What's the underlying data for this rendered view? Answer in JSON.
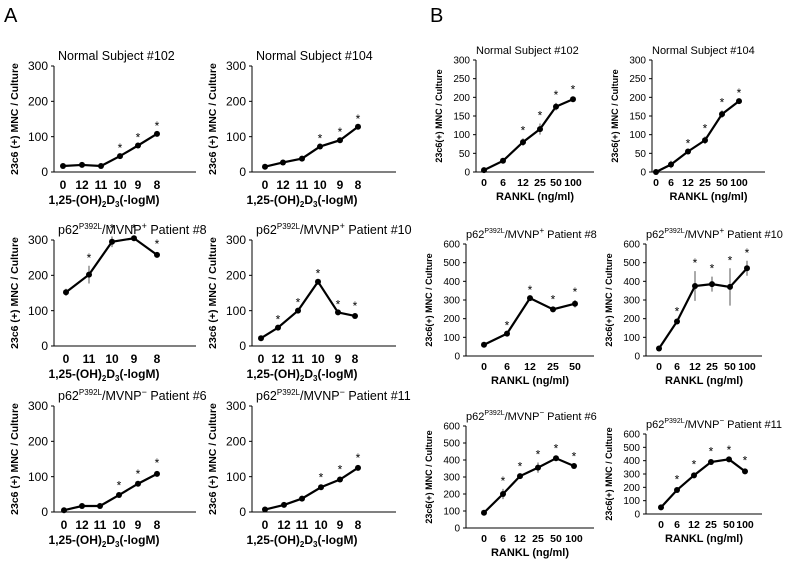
{
  "panel_labels": {
    "a": "A",
    "b": "B"
  },
  "axis_labels": {
    "vitd_x": "1,25-(OH)",
    "vitd_sub": "2",
    "vitd_mid": "D",
    "vitd_sub2": "3",
    "vitd_end": "(-logM)",
    "rankl_x": "RANKL (ng/ml)",
    "y_A": "23c6 (+) MNC / Culture",
    "y_B": "23c6(+) MNC / Culture"
  },
  "title_parts": {
    "p62": "p62",
    "sup": "P392L",
    "mvnp": "/MVNP",
    "plus": "+",
    "minus": "−"
  },
  "chart_data": [
    {
      "type": "line",
      "id": "A1",
      "title": "Normal  Subject #102",
      "categories": [
        "0",
        "12",
        "11",
        "10",
        "9",
        "8"
      ],
      "values": [
        17,
        20,
        17,
        45,
        75,
        108
      ],
      "errors": [
        0,
        0,
        0,
        0,
        0,
        0
      ],
      "significant": [
        false,
        false,
        false,
        true,
        true,
        true
      ],
      "ylim": [
        0,
        300
      ],
      "yticks": [
        "0",
        "100",
        "200",
        "300"
      ],
      "xlabel": "1,25-(OH)2D3(-logM)",
      "ylabel": "23c6 (+) MNC / Culture"
    },
    {
      "type": "line",
      "id": "A2",
      "title": "Normal Subject #104",
      "categories": [
        "0",
        "12",
        "11",
        "10",
        "9",
        "8"
      ],
      "values": [
        15,
        27,
        38,
        72,
        90,
        128
      ],
      "errors": [
        0,
        0,
        0,
        0,
        0,
        0
      ],
      "significant": [
        false,
        false,
        false,
        true,
        true,
        true
      ],
      "ylim": [
        0,
        300
      ],
      "yticks": [
        "0",
        "100",
        "200",
        "300"
      ],
      "xlabel": "1,25-(OH)2D3(-logM)",
      "ylabel": "23c6 (+) MNC / Culture"
    },
    {
      "type": "line",
      "id": "A3",
      "title": "p62P392L/MVNP+ Patient #8",
      "title_patient": " Patient #8",
      "sign": "plus",
      "categories": [
        "0",
        "11",
        "10",
        "9",
        "8"
      ],
      "values": [
        152,
        202,
        295,
        305,
        258
      ],
      "errors": [
        10,
        25,
        15,
        5,
        8
      ],
      "significant": [
        false,
        true,
        true,
        true,
        true
      ],
      "ylim": [
        0,
        300
      ],
      "yticks": [
        "0",
        "100",
        "200",
        "300"
      ],
      "xlabel": "1,25-(OH)2D3(-logM)",
      "ylabel": "23c6 (+) MNC / Culture"
    },
    {
      "type": "line",
      "id": "A4",
      "title": "p62P392L/MVNP+ Patient #10",
      "title_patient": " Patient #10",
      "sign": "plus",
      "categories": [
        "0",
        "12",
        "11",
        "10",
        "9",
        "8"
      ],
      "values": [
        22,
        52,
        100,
        182,
        95,
        85
      ],
      "errors": [
        0,
        0,
        0,
        0,
        0,
        5
      ],
      "significant": [
        false,
        true,
        true,
        true,
        true,
        true
      ],
      "ylim": [
        0,
        300
      ],
      "yticks": [
        "0",
        "100",
        "200",
        "300"
      ],
      "xlabel": "1,25-(OH)2D3(-logM)",
      "ylabel": "23c6 (+) MNC / Culture"
    },
    {
      "type": "line",
      "id": "A5",
      "title": "p62P392L/MVNP− Patient #6",
      "title_patient": " Patient #6",
      "sign": "minus",
      "categories": [
        "0",
        "12",
        "11",
        "10",
        "9",
        "8"
      ],
      "values": [
        5,
        17,
        17,
        48,
        80,
        108
      ],
      "errors": [
        0,
        0,
        0,
        5,
        5,
        8
      ],
      "significant": [
        false,
        false,
        false,
        true,
        true,
        true
      ],
      "ylim": [
        0,
        300
      ],
      "yticks": [
        "0",
        "100",
        "200",
        "300"
      ],
      "xlabel": "1,25-(OH)2D3(-logM)",
      "ylabel": "23c6 (+) MNC / Culture"
    },
    {
      "type": "line",
      "id": "A6",
      "title": "p62P392L/MVNP− Patient #11",
      "title_patient": " Patient #11",
      "sign": "minus",
      "categories": [
        "0",
        "12",
        "11",
        "10",
        "9",
        "8"
      ],
      "values": [
        7,
        20,
        38,
        70,
        92,
        125
      ],
      "errors": [
        0,
        0,
        5,
        5,
        5,
        5
      ],
      "significant": [
        false,
        false,
        false,
        true,
        true,
        true
      ],
      "ylim": [
        0,
        300
      ],
      "yticks": [
        "0",
        "100",
        "200",
        "300"
      ],
      "xlabel": "1,25-(OH)2D3(-logM)",
      "ylabel": "23c6 (+) MNC / Culture"
    },
    {
      "type": "line",
      "id": "B1",
      "title": "Normal   Subject #102",
      "categories": [
        "0",
        "6",
        "12",
        "25",
        "50",
        "100"
      ],
      "values": [
        5,
        30,
        80,
        115,
        175,
        195
      ],
      "errors": [
        0,
        0,
        10,
        15,
        10,
        5
      ],
      "significant": [
        false,
        false,
        true,
        true,
        true,
        true
      ],
      "ylim": [
        0,
        300
      ],
      "yticks": [
        "0",
        "50",
        "100",
        "150",
        "200",
        "250",
        "300"
      ],
      "xlabel": "RANKL (ng/ml)",
      "ylabel": "23c6(+) MNC / Culture"
    },
    {
      "type": "line",
      "id": "B2",
      "title": "Normal Subject #104",
      "categories": [
        "0",
        "6",
        "12",
        "25",
        "50",
        "100"
      ],
      "values": [
        0,
        20,
        55,
        85,
        155,
        190
      ],
      "errors": [
        0,
        10,
        0,
        10,
        10,
        0
      ],
      "significant": [
        false,
        false,
        true,
        true,
        true,
        true
      ],
      "ylim": [
        0,
        300
      ],
      "yticks": [
        "0",
        "50",
        "100",
        "150",
        "200",
        "250",
        "300"
      ],
      "xlabel": "RANKL (ng/ml)",
      "ylabel": "23c6(+) MNC / Culture"
    },
    {
      "type": "line",
      "id": "B3",
      "title": "p62P392L/MVNP+ Patient #8",
      "title_patient": " Patient #8",
      "sign": "plus",
      "categories": [
        "0",
        "6",
        "12",
        "25",
        "50"
      ],
      "values": [
        60,
        120,
        310,
        250,
        280
      ],
      "errors": [
        0,
        0,
        0,
        10,
        20
      ],
      "significant": [
        false,
        true,
        true,
        true,
        true
      ],
      "ylim": [
        0,
        600
      ],
      "yticks": [
        "0",
        "100",
        "200",
        "300",
        "400",
        "500",
        "600"
      ],
      "xlabel": "RANKL (ng/ml)",
      "ylabel": "23c6(+) MNC / Culture"
    },
    {
      "type": "line",
      "id": "B4",
      "title": "p62P392L/MVNP+ Patient #10",
      "title_patient": " Patient #10",
      "sign": "plus",
      "categories": [
        "0",
        "6",
        "12",
        "25",
        "50",
        "100"
      ],
      "values": [
        40,
        185,
        375,
        385,
        370,
        470
      ],
      "errors": [
        0,
        10,
        80,
        40,
        100,
        40
      ],
      "significant": [
        false,
        true,
        true,
        true,
        true,
        true
      ],
      "ylim": [
        0,
        600
      ],
      "yticks": [
        "0",
        "100",
        "200",
        "300",
        "400",
        "500",
        "600"
      ],
      "xlabel": "RANKL (ng/ml)",
      "ylabel": "23c6(+) MNC / Culture"
    },
    {
      "type": "line",
      "id": "B5",
      "title": "p62P392L/MVNP− Patient #6",
      "title_patient": " Patient #6",
      "sign": "minus",
      "categories": [
        "0",
        "6",
        "12",
        "25",
        "50",
        "100"
      ],
      "values": [
        90,
        200,
        305,
        355,
        410,
        365
      ],
      "errors": [
        0,
        30,
        10,
        30,
        10,
        10
      ],
      "significant": [
        false,
        true,
        true,
        true,
        true,
        true
      ],
      "ylim": [
        0,
        600
      ],
      "yticks": [
        "0",
        "100",
        "200",
        "300",
        "400",
        "500",
        "600"
      ],
      "xlabel": "RANKL (ng/ml)",
      "ylabel": "23c6(+) MNC / Culture"
    },
    {
      "type": "line",
      "id": "B6",
      "title": "p62P392L/MVNP− Patient #11",
      "title_patient": " Patient #11",
      "sign": "minus",
      "categories": [
        "0",
        "6",
        "12",
        "25",
        "50",
        "100"
      ],
      "values": [
        50,
        180,
        290,
        390,
        410,
        320
      ],
      "errors": [
        0,
        20,
        20,
        20,
        10,
        20
      ],
      "significant": [
        false,
        true,
        true,
        true,
        true,
        true
      ],
      "ylim": [
        0,
        600
      ],
      "yticks": [
        "0",
        "100",
        "200",
        "300",
        "400",
        "500",
        "600"
      ],
      "xlabel": "RANKL (ng/ml)",
      "ylabel": "23c6(+) MNC / Culture"
    }
  ]
}
